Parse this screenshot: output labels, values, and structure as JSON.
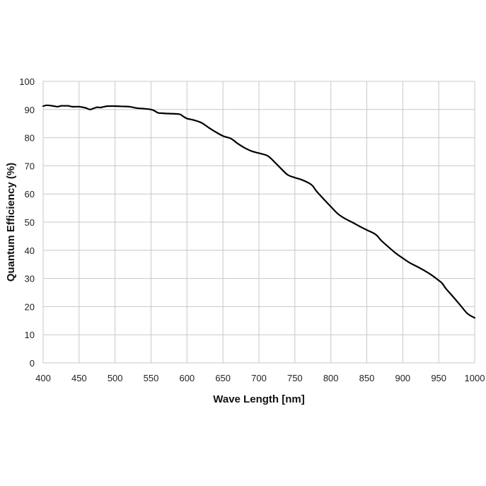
{
  "chart_data": {
    "type": "line",
    "xlabel": "Wave Length [nm]",
    "ylabel": "Quantum Efficiency (%)",
    "xlim": [
      400,
      1000
    ],
    "ylim": [
      0,
      100
    ],
    "xticks": [
      "400",
      "450",
      "500",
      "550",
      "600",
      "650",
      "700",
      "750",
      "800",
      "850",
      "900",
      "950",
      "1000"
    ],
    "yticks": [
      "0",
      "10",
      "20",
      "30",
      "40",
      "50",
      "60",
      "70",
      "80",
      "90",
      "100"
    ],
    "grid": true,
    "legend": "none",
    "series": [
      {
        "color": "#000000",
        "x": [
          400,
          405,
          410,
          415,
          420,
          425,
          430,
          435,
          440,
          445,
          450,
          455,
          460,
          465,
          470,
          475,
          480,
          485,
          490,
          495,
          500,
          510,
          520,
          530,
          540,
          550,
          555,
          560,
          565,
          570,
          580,
          590,
          595,
          600,
          605,
          610,
          620,
          630,
          640,
          650,
          660,
          665,
          670,
          680,
          690,
          700,
          710,
          715,
          720,
          730,
          740,
          750,
          760,
          770,
          775,
          780,
          790,
          800,
          810,
          820,
          830,
          840,
          850,
          860,
          865,
          870,
          880,
          890,
          900,
          910,
          920,
          930,
          940,
          950,
          955,
          960,
          970,
          980,
          990,
          1000
        ],
        "y": [
          91.2,
          91.5,
          91.4,
          91.2,
          91,
          91.3,
          91.3,
          91.3,
          91,
          91,
          91,
          90.8,
          90.5,
          90,
          90.4,
          90.8,
          90.7,
          91,
          91.2,
          91.2,
          91.2,
          91.1,
          91,
          90.5,
          90.3,
          90,
          89.5,
          88.8,
          88.7,
          88.6,
          88.5,
          88.3,
          87.5,
          86.8,
          86.5,
          86.2,
          85.3,
          83.6,
          82,
          80.6,
          79.8,
          79,
          78,
          76.4,
          75.2,
          74.5,
          73.8,
          73,
          71.8,
          69.2,
          66.8,
          65.8,
          65,
          63.8,
          62.8,
          61,
          58.2,
          55.5,
          52.9,
          51.2,
          49.9,
          48.5,
          47.2,
          46,
          45,
          43.5,
          41.2,
          39,
          37.2,
          35.5,
          34.2,
          32.8,
          31.2,
          29.3,
          28.2,
          26.4,
          23.5,
          20.5,
          17.5,
          16
        ]
      }
    ]
  }
}
